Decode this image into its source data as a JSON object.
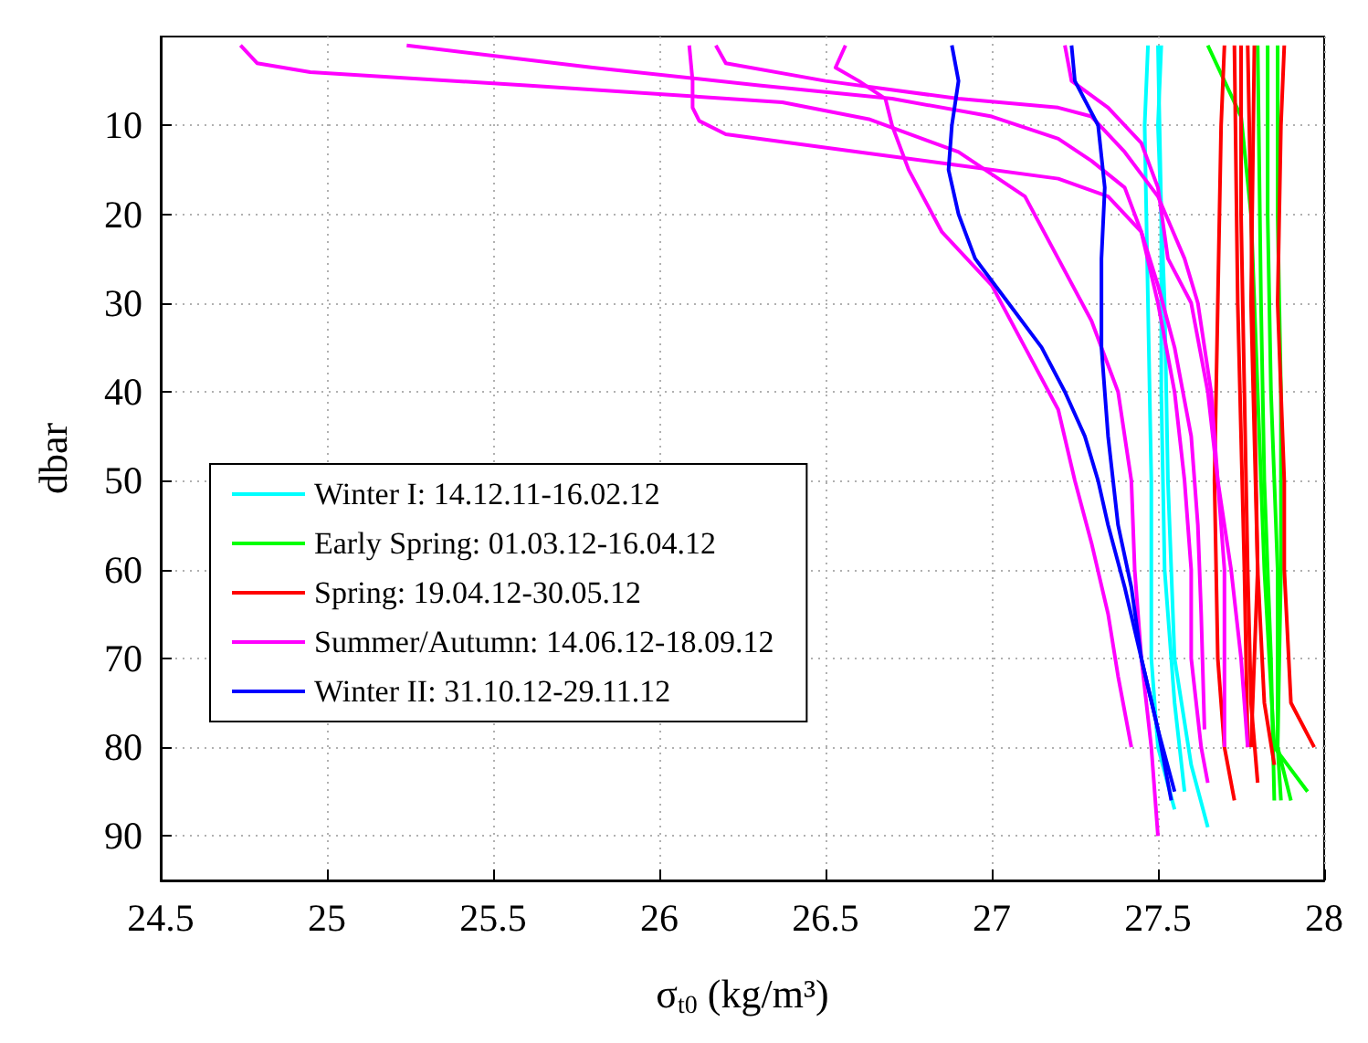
{
  "chart_data": {
    "type": "line",
    "xlabel": "σ$_{t0}$ (kg/m³)",
    "ylabel": "dbar",
    "xlim": [
      24.5,
      28
    ],
    "xticks": [
      24.5,
      25,
      25.5,
      26,
      26.5,
      27,
      27.5,
      28
    ],
    "ylim": [
      95,
      0
    ],
    "yticks": [
      10,
      20,
      30,
      40,
      50,
      60,
      70,
      80,
      90
    ],
    "grid": true,
    "legend": "bottom left",
    "marker": "none",
    "series": [
      {
        "name": "Winter I: 14.12.11-16.02.12",
        "color": "#00ffff",
        "x": [
          27.47,
          27.46,
          27.47,
          27.48,
          27.48,
          27.5,
          27.55
        ],
        "values": [
          1,
          10,
          30,
          50,
          70,
          80,
          87
        ]
      },
      {
        "color": "#00ffff",
        "x": [
          27.51,
          27.5,
          27.52,
          27.53,
          27.55,
          27.6,
          27.65
        ],
        "values": [
          1,
          10,
          30,
          50,
          70,
          82,
          89
        ]
      },
      {
        "color": "#00ffff",
        "x": [
          27.5,
          27.51,
          27.51,
          27.52,
          27.55,
          27.58
        ],
        "values": [
          1,
          20,
          40,
          60,
          75,
          85
        ]
      },
      {
        "name": "Early Spring: 01.03.12-16.04.12",
        "color": "#00ff00",
        "x": [
          27.65,
          27.7,
          27.75,
          27.78,
          27.8,
          27.82,
          27.85,
          27.95
        ],
        "values": [
          1,
          5,
          9,
          20,
          40,
          60,
          80,
          85
        ]
      },
      {
        "color": "#00ff00",
        "x": [
          27.83,
          27.83,
          27.84,
          27.86,
          27.86,
          27.87
        ],
        "values": [
          1,
          20,
          40,
          60,
          80,
          86
        ]
      },
      {
        "color": "#00ff00",
        "x": [
          27.8,
          27.81,
          27.82,
          27.84,
          27.85
        ],
        "values": [
          1,
          30,
          50,
          70,
          86
        ]
      },
      {
        "color": "#00ff00",
        "x": [
          27.86,
          27.86,
          27.87,
          27.87,
          27.86,
          27.9
        ],
        "values": [
          1,
          20,
          40,
          60,
          80,
          86
        ]
      },
      {
        "name": "Spring: 19.04.12-30.05.12",
        "color": "#ff0000",
        "x": [
          27.7,
          27.69,
          27.68,
          27.67,
          27.68,
          27.7,
          27.73
        ],
        "values": [
          1,
          10,
          30,
          50,
          70,
          80,
          86
        ]
      },
      {
        "color": "#ff0000",
        "x": [
          27.75,
          27.75,
          27.76,
          27.77,
          27.78,
          27.8
        ],
        "values": [
          1,
          20,
          40,
          60,
          75,
          84
        ]
      },
      {
        "color": "#ff0000",
        "x": [
          27.77,
          27.78,
          27.79,
          27.8,
          27.82,
          27.85
        ],
        "values": [
          1,
          20,
          40,
          60,
          75,
          82
        ]
      },
      {
        "color": "#ff0000",
        "x": [
          27.88,
          27.87,
          27.86,
          27.88,
          27.88,
          27.9,
          27.97
        ],
        "values": [
          1,
          10,
          30,
          50,
          60,
          75,
          80
        ]
      },
      {
        "color": "#ff0000",
        "x": [
          27.73,
          27.74,
          27.76,
          27.77
        ],
        "values": [
          1,
          30,
          60,
          80
        ]
      },
      {
        "color": "#ff0000",
        "x": [
          27.79,
          27.78,
          27.8,
          27.78
        ],
        "values": [
          1,
          30,
          60,
          80
        ]
      },
      {
        "name": "Summer/Autumn: 14.06.12-18.09.12",
        "color": "#ff00ff",
        "x": [
          24.74,
          24.79,
          24.95,
          25.6,
          26.37,
          26.63,
          26.9,
          27.1,
          27.2,
          27.3,
          27.38,
          27.42,
          27.43,
          27.45,
          27.48,
          27.5
        ],
        "values": [
          1,
          3,
          4,
          5.5,
          7.4,
          9.3,
          13,
          18,
          25,
          32,
          40,
          50,
          60,
          70,
          80,
          90
        ]
      },
      {
        "color": "#ff00ff",
        "x": [
          25.24,
          25.8,
          26.3,
          26.7,
          27.0,
          27.2,
          27.3,
          27.4,
          27.45,
          27.5,
          27.55,
          27.58,
          27.6,
          27.6,
          27.63,
          27.65
        ],
        "values": [
          1,
          3.5,
          5.5,
          7,
          9,
          11.5,
          14,
          17,
          22,
          30,
          40,
          50,
          60,
          70,
          80,
          84
        ]
      },
      {
        "color": "#ff00ff",
        "x": [
          26.09,
          26.1,
          26.1,
          26.12,
          26.2,
          26.6,
          26.9,
          27.2,
          27.35,
          27.45,
          27.5,
          27.55,
          27.6,
          27.62,
          27.63,
          27.64
        ],
        "values": [
          1,
          5,
          8,
          9.5,
          11,
          13,
          14.5,
          16,
          18,
          22,
          28,
          35,
          45,
          55,
          65,
          78
        ]
      },
      {
        "color": "#ff00ff",
        "x": [
          26.17,
          26.2,
          26.5,
          26.9,
          27.2,
          27.3,
          27.4,
          27.5,
          27.58,
          27.62,
          27.66,
          27.68,
          27.7,
          27.7,
          27.7
        ],
        "values": [
          1,
          3,
          5,
          7,
          8,
          9,
          13,
          18,
          25,
          30,
          40,
          50,
          60,
          70,
          80
        ]
      },
      {
        "color": "#ff00ff",
        "x": [
          26.56,
          26.53,
          26.6,
          26.68,
          26.7,
          26.75,
          26.85,
          27.0,
          27.1,
          27.2,
          27.25,
          27.3,
          27.35,
          27.38,
          27.42
        ],
        "values": [
          1,
          3.5,
          5,
          7,
          10,
          15,
          22,
          28,
          35,
          42,
          50,
          57,
          65,
          72,
          80
        ]
      },
      {
        "color": "#ff00ff",
        "x": [
          27.22,
          27.24,
          27.35,
          27.45,
          27.5,
          27.53,
          27.6,
          27.65,
          27.68,
          27.72,
          27.75,
          27.77
        ],
        "values": [
          1,
          5,
          8,
          12,
          17,
          25,
          30,
          40,
          50,
          60,
          70,
          80
        ]
      },
      {
        "name": "Winter II: 31.10.12-29.11.12",
        "color": "#0000ff",
        "x": [
          26.88,
          26.9,
          26.88,
          26.87,
          26.9,
          26.95,
          27.05,
          27.15,
          27.22,
          27.28,
          27.32,
          27.35,
          27.4,
          27.45,
          27.5,
          27.54
        ],
        "values": [
          1,
          5,
          10,
          15,
          20,
          25,
          30,
          35,
          40,
          45,
          50,
          55,
          62,
          70,
          78,
          86
        ]
      },
      {
        "color": "#0000ff",
        "x": [
          27.24,
          27.25,
          27.32,
          27.34,
          27.33,
          27.33,
          27.35,
          27.38,
          27.42,
          27.45,
          27.5,
          27.55
        ],
        "values": [
          1,
          5,
          10,
          17,
          25,
          35,
          45,
          55,
          62,
          70,
          78,
          85
        ]
      }
    ]
  }
}
